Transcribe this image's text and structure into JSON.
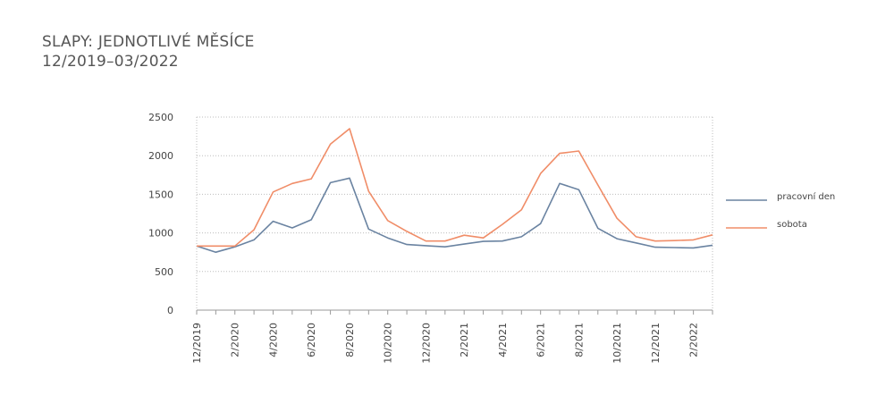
{
  "title": "SLAPY: JEDNOTLIVÉ MĚSÍCE",
  "subtitle": "12/2019–03/2022",
  "chart_data": {
    "type": "line",
    "title": "SLAPY: JEDNOTLIVÉ MĚSÍCE",
    "subtitle": "12/2019–03/2022",
    "x": [
      "12/2019",
      "1/2020",
      "2/2020",
      "3/2020",
      "4/2020",
      "5/2020",
      "6/2020",
      "7/2020",
      "8/2020",
      "9/2020",
      "10/2020",
      "11/2020",
      "12/2020",
      "1/2021",
      "2/2021",
      "3/2021",
      "4/2021",
      "5/2021",
      "6/2021",
      "7/2021",
      "8/2021",
      "9/2021",
      "10/2021",
      "11/2021",
      "12/2021",
      "1/2022",
      "2/2022",
      "3/2022"
    ],
    "x_tick_labels": [
      "12/2019",
      "2/2020",
      "4/2020",
      "6/2020",
      "8/2020",
      "10/2020",
      "12/2020",
      "2/2021",
      "4/2021",
      "6/2021",
      "8/2021",
      "10/2021",
      "12/2021",
      "2/2022"
    ],
    "y_ticks": [
      "0",
      "500",
      "1000",
      "1500",
      "2000",
      "2500"
    ],
    "ylim": [
      0,
      2500
    ],
    "grid": true,
    "legend_position": "right",
    "series": [
      {
        "name": "pracovní den",
        "color": "#6a83a1",
        "values": [
          830,
          750,
          820,
          910,
          1150,
          1065,
          1170,
          1650,
          1710,
          1050,
          935,
          850,
          835,
          820,
          855,
          890,
          895,
          950,
          1120,
          1640,
          1560,
          1060,
          925,
          870,
          815,
          810,
          805,
          840
        ]
      },
      {
        "name": "sobota",
        "color": "#f08d68",
        "values": [
          830,
          830,
          830,
          1040,
          1530,
          1640,
          1700,
          2150,
          2350,
          1540,
          1160,
          1020,
          895,
          895,
          970,
          935,
          1110,
          1300,
          1770,
          2030,
          2060,
          1620,
          1190,
          950,
          895,
          900,
          910,
          975
        ]
      }
    ]
  }
}
